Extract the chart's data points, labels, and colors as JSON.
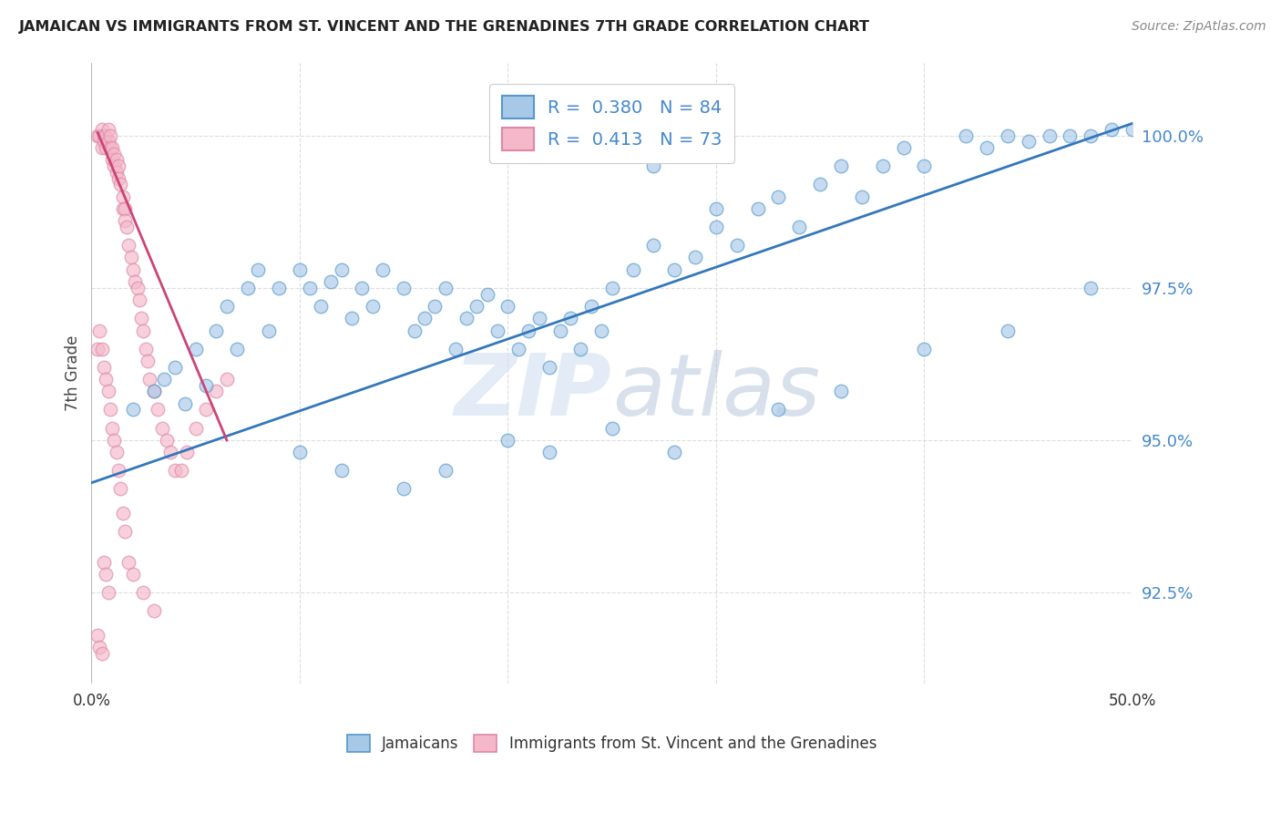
{
  "title": "JAMAICAN VS IMMIGRANTS FROM ST. VINCENT AND THE GRENADINES 7TH GRADE CORRELATION CHART",
  "source": "Source: ZipAtlas.com",
  "ylabel": "7th Grade",
  "xlim": [
    0.0,
    0.5
  ],
  "ylim": [
    91.0,
    101.2
  ],
  "y_ticks": [
    92.5,
    95.0,
    97.5,
    100.0
  ],
  "legend_blue_R": "0.380",
  "legend_blue_N": "84",
  "legend_pink_R": "0.413",
  "legend_pink_N": "73",
  "blue_fill": "#a8c8e8",
  "blue_edge": "#5599cc",
  "blue_line": "#3377bb",
  "pink_fill": "#f4b8c8",
  "pink_edge": "#dd88aa",
  "pink_line": "#cc4477",
  "tick_color": "#4488cc",
  "grid_color": "#dddddd",
  "watermark_color": "#ddeeff",
  "blue_x": [
    0.02,
    0.03,
    0.035,
    0.04,
    0.045,
    0.05,
    0.055,
    0.06,
    0.065,
    0.07,
    0.075,
    0.08,
    0.085,
    0.09,
    0.1,
    0.105,
    0.11,
    0.115,
    0.12,
    0.125,
    0.13,
    0.135,
    0.14,
    0.15,
    0.155,
    0.16,
    0.165,
    0.17,
    0.175,
    0.18,
    0.185,
    0.19,
    0.195,
    0.2,
    0.205,
    0.21,
    0.215,
    0.22,
    0.225,
    0.23,
    0.235,
    0.24,
    0.245,
    0.25,
    0.26,
    0.27,
    0.28,
    0.29,
    0.3,
    0.31,
    0.32,
    0.33,
    0.34,
    0.35,
    0.36,
    0.37,
    0.38,
    0.39,
    0.4,
    0.42,
    0.43,
    0.44,
    0.45,
    0.46,
    0.47,
    0.48,
    0.49,
    0.5,
    0.27,
    0.3,
    0.1,
    0.12,
    0.15,
    0.17,
    0.2,
    0.22,
    0.25,
    0.28,
    0.33,
    0.36,
    0.4,
    0.44,
    0.48
  ],
  "blue_y": [
    95.5,
    95.8,
    96.0,
    96.2,
    95.6,
    96.5,
    95.9,
    96.8,
    97.2,
    96.5,
    97.5,
    97.8,
    96.8,
    97.5,
    97.8,
    97.5,
    97.2,
    97.6,
    97.8,
    97.0,
    97.5,
    97.2,
    97.8,
    97.5,
    96.8,
    97.0,
    97.2,
    97.5,
    96.5,
    97.0,
    97.2,
    97.4,
    96.8,
    97.2,
    96.5,
    96.8,
    97.0,
    96.2,
    96.8,
    97.0,
    96.5,
    97.2,
    96.8,
    97.5,
    97.8,
    98.2,
    97.8,
    98.0,
    98.5,
    98.2,
    98.8,
    99.0,
    98.5,
    99.2,
    99.5,
    99.0,
    99.5,
    99.8,
    99.5,
    100.0,
    99.8,
    100.0,
    99.9,
    100.0,
    100.0,
    100.0,
    100.1,
    100.1,
    99.5,
    98.8,
    94.8,
    94.5,
    94.2,
    94.5,
    95.0,
    94.8,
    95.2,
    94.8,
    95.5,
    95.8,
    96.5,
    96.8,
    97.5
  ],
  "pink_x": [
    0.003,
    0.004,
    0.005,
    0.005,
    0.006,
    0.006,
    0.007,
    0.007,
    0.008,
    0.008,
    0.009,
    0.009,
    0.01,
    0.01,
    0.011,
    0.011,
    0.012,
    0.012,
    0.013,
    0.013,
    0.014,
    0.015,
    0.015,
    0.016,
    0.016,
    0.017,
    0.018,
    0.019,
    0.02,
    0.021,
    0.022,
    0.023,
    0.024,
    0.025,
    0.026,
    0.027,
    0.028,
    0.03,
    0.032,
    0.034,
    0.036,
    0.038,
    0.04,
    0.043,
    0.046,
    0.05,
    0.055,
    0.06,
    0.065,
    0.003,
    0.004,
    0.005,
    0.006,
    0.007,
    0.008,
    0.009,
    0.01,
    0.011,
    0.012,
    0.013,
    0.014,
    0.015,
    0.016,
    0.018,
    0.02,
    0.025,
    0.03,
    0.003,
    0.004,
    0.005,
    0.006,
    0.007,
    0.008
  ],
  "pink_y": [
    100.0,
    100.0,
    100.1,
    99.8,
    100.0,
    99.9,
    100.0,
    99.8,
    99.9,
    100.1,
    99.8,
    100.0,
    99.8,
    99.6,
    99.7,
    99.5,
    99.6,
    99.4,
    99.5,
    99.3,
    99.2,
    99.0,
    98.8,
    98.8,
    98.6,
    98.5,
    98.2,
    98.0,
    97.8,
    97.6,
    97.5,
    97.3,
    97.0,
    96.8,
    96.5,
    96.3,
    96.0,
    95.8,
    95.5,
    95.2,
    95.0,
    94.8,
    94.5,
    94.5,
    94.8,
    95.2,
    95.5,
    95.8,
    96.0,
    96.5,
    96.8,
    96.5,
    96.2,
    96.0,
    95.8,
    95.5,
    95.2,
    95.0,
    94.8,
    94.5,
    94.2,
    93.8,
    93.5,
    93.0,
    92.8,
    92.5,
    92.2,
    91.8,
    91.6,
    91.5,
    93.0,
    92.8,
    92.5
  ],
  "blue_line_x": [
    0.0,
    0.5
  ],
  "blue_line_y": [
    94.3,
    100.2
  ],
  "pink_line_x": [
    0.003,
    0.065
  ],
  "pink_line_y": [
    100.05,
    95.0
  ]
}
